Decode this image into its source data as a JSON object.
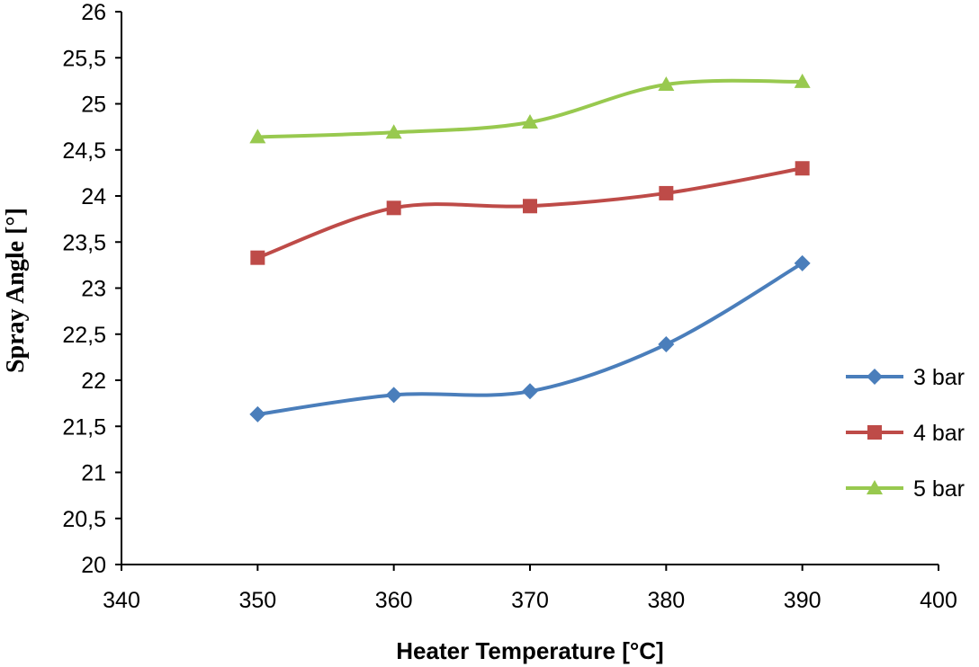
{
  "chart_data": {
    "type": "line",
    "title": "",
    "xlabel": "Heater Temperature [°C]",
    "ylabel": "Spray Angle [°]",
    "xlim": [
      340,
      400
    ],
    "ylim": [
      20,
      26
    ],
    "xticks": [
      340,
      350,
      360,
      370,
      380,
      390,
      400
    ],
    "xtick_labels": [
      "340",
      "350",
      "360",
      "370",
      "380",
      "390",
      "400"
    ],
    "yticks": [
      20,
      20.5,
      21,
      21.5,
      22,
      22.5,
      23,
      23.5,
      24,
      24.5,
      25,
      25.5,
      26
    ],
    "ytick_labels": [
      "20",
      "20,5",
      "21",
      "21,5",
      "22",
      "22,5",
      "23",
      "23,5",
      "24",
      "24,5",
      "25",
      "25,5",
      "26"
    ],
    "grid": false,
    "legend_position": "right",
    "x": [
      350,
      360,
      370,
      380,
      390
    ],
    "series": [
      {
        "name": "3 bar",
        "values": [
          21.63,
          21.84,
          21.88,
          22.39,
          23.27
        ],
        "color": "#4a7ebb",
        "marker": "diamond"
      },
      {
        "name": "4 bar",
        "values": [
          23.33,
          23.87,
          23.89,
          24.03,
          24.3
        ],
        "color": "#be4b48",
        "marker": "square"
      },
      {
        "name": "5 bar",
        "values": [
          24.64,
          24.69,
          24.8,
          25.21,
          25.24
        ],
        "color": "#98c94f",
        "marker": "triangle"
      }
    ]
  }
}
